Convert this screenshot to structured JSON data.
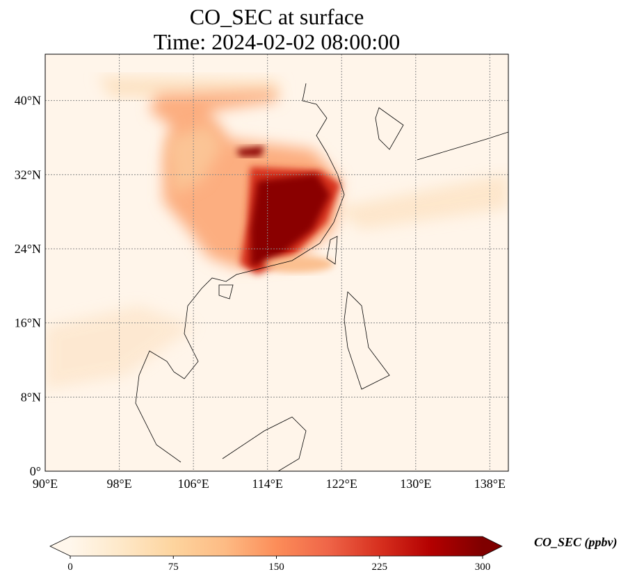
{
  "title": {
    "line1": "CO_SEC at surface",
    "line2": "Time: 2024-02-02 08:00:00"
  },
  "map": {
    "extent": {
      "lon": [
        90,
        140
      ],
      "lat": [
        0,
        45
      ]
    },
    "lon_ticks": [
      90,
      98,
      106,
      114,
      122,
      130,
      138
    ],
    "lon_labels": [
      "90°E",
      "98°E",
      "106°E",
      "114°E",
      "122°E",
      "130°E",
      "138°E"
    ],
    "lat_ticks": [
      0,
      8,
      16,
      24,
      32,
      40
    ],
    "lat_labels": [
      "0°",
      "8°N",
      "16°N",
      "24°N",
      "32°N",
      "40°N"
    ]
  },
  "colorbar": {
    "label": "CO_SEC (ppbv)",
    "range": [
      0,
      300
    ],
    "ticks": [
      0,
      75,
      150,
      225,
      300
    ],
    "tick_labels": [
      "0",
      "75",
      "150",
      "225",
      "300"
    ],
    "colors": [
      "#fff7ec",
      "#fee8c8",
      "#fdd49e",
      "#fdbb84",
      "#fc8d59",
      "#ef6548",
      "#d7301f",
      "#b30000",
      "#7f0000"
    ]
  }
}
